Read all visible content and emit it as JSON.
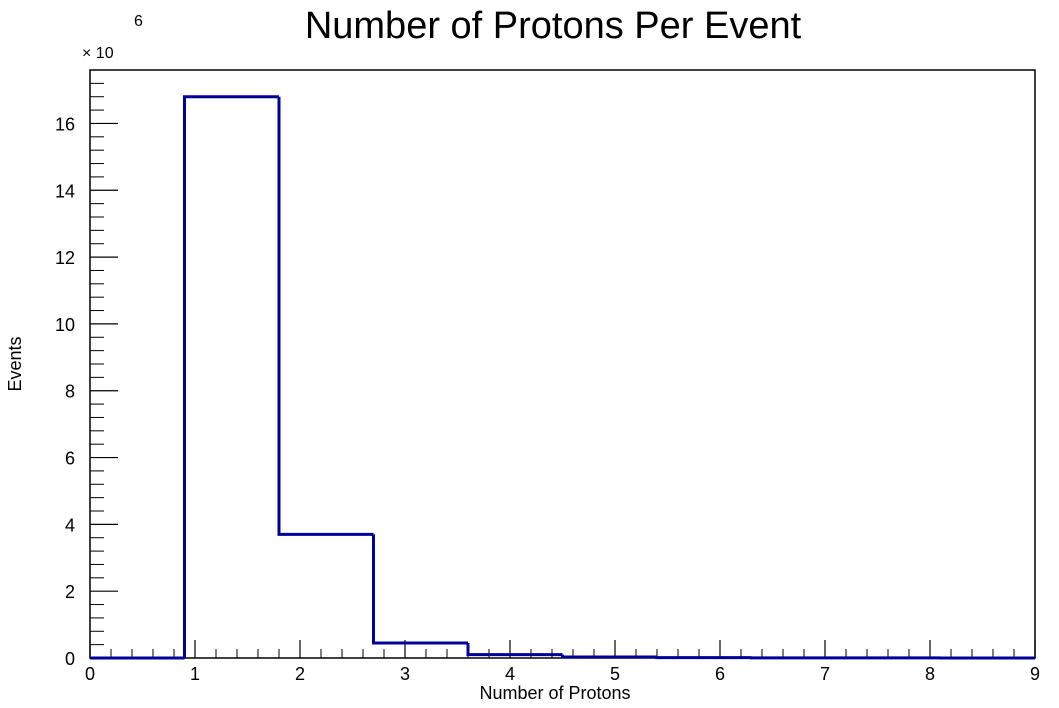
{
  "chart_data": {
    "type": "bar",
    "title": "Number of Protons Per Event",
    "xlabel": "Number of Protons",
    "ylabel": "Events",
    "y_multiplier_label": "× 10",
    "y_multiplier_exponent": "6",
    "xlim": [
      0,
      9
    ],
    "ylim": [
      0,
      17.6
    ],
    "y_scale_factor": 1000000,
    "x_ticks": [
      "0",
      "1",
      "2",
      "3",
      "4",
      "5",
      "6",
      "7",
      "8",
      "9"
    ],
    "y_ticks": [
      "0",
      "2",
      "4",
      "6",
      "8",
      "10",
      "12",
      "14",
      "16"
    ],
    "bins": [
      {
        "x0": 0.0,
        "x1": 0.9,
        "value": 0
      },
      {
        "x0": 0.9,
        "x1": 1.8,
        "value": 16.8
      },
      {
        "x0": 1.8,
        "x1": 2.7,
        "value": 3.7
      },
      {
        "x0": 2.7,
        "x1": 3.6,
        "value": 0.45
      },
      {
        "x0": 3.6,
        "x1": 4.5,
        "value": 0.1
      },
      {
        "x0": 4.5,
        "x1": 5.4,
        "value": 0.03
      },
      {
        "x0": 5.4,
        "x1": 6.3,
        "value": 0.01
      },
      {
        "x0": 6.3,
        "x1": 7.2,
        "value": 0.005
      },
      {
        "x0": 7.2,
        "x1": 8.1,
        "value": 0.002
      },
      {
        "x0": 8.1,
        "x1": 9.0,
        "value": 0.001
      }
    ],
    "line_color": "#000099",
    "grid": false,
    "legend": "none"
  }
}
